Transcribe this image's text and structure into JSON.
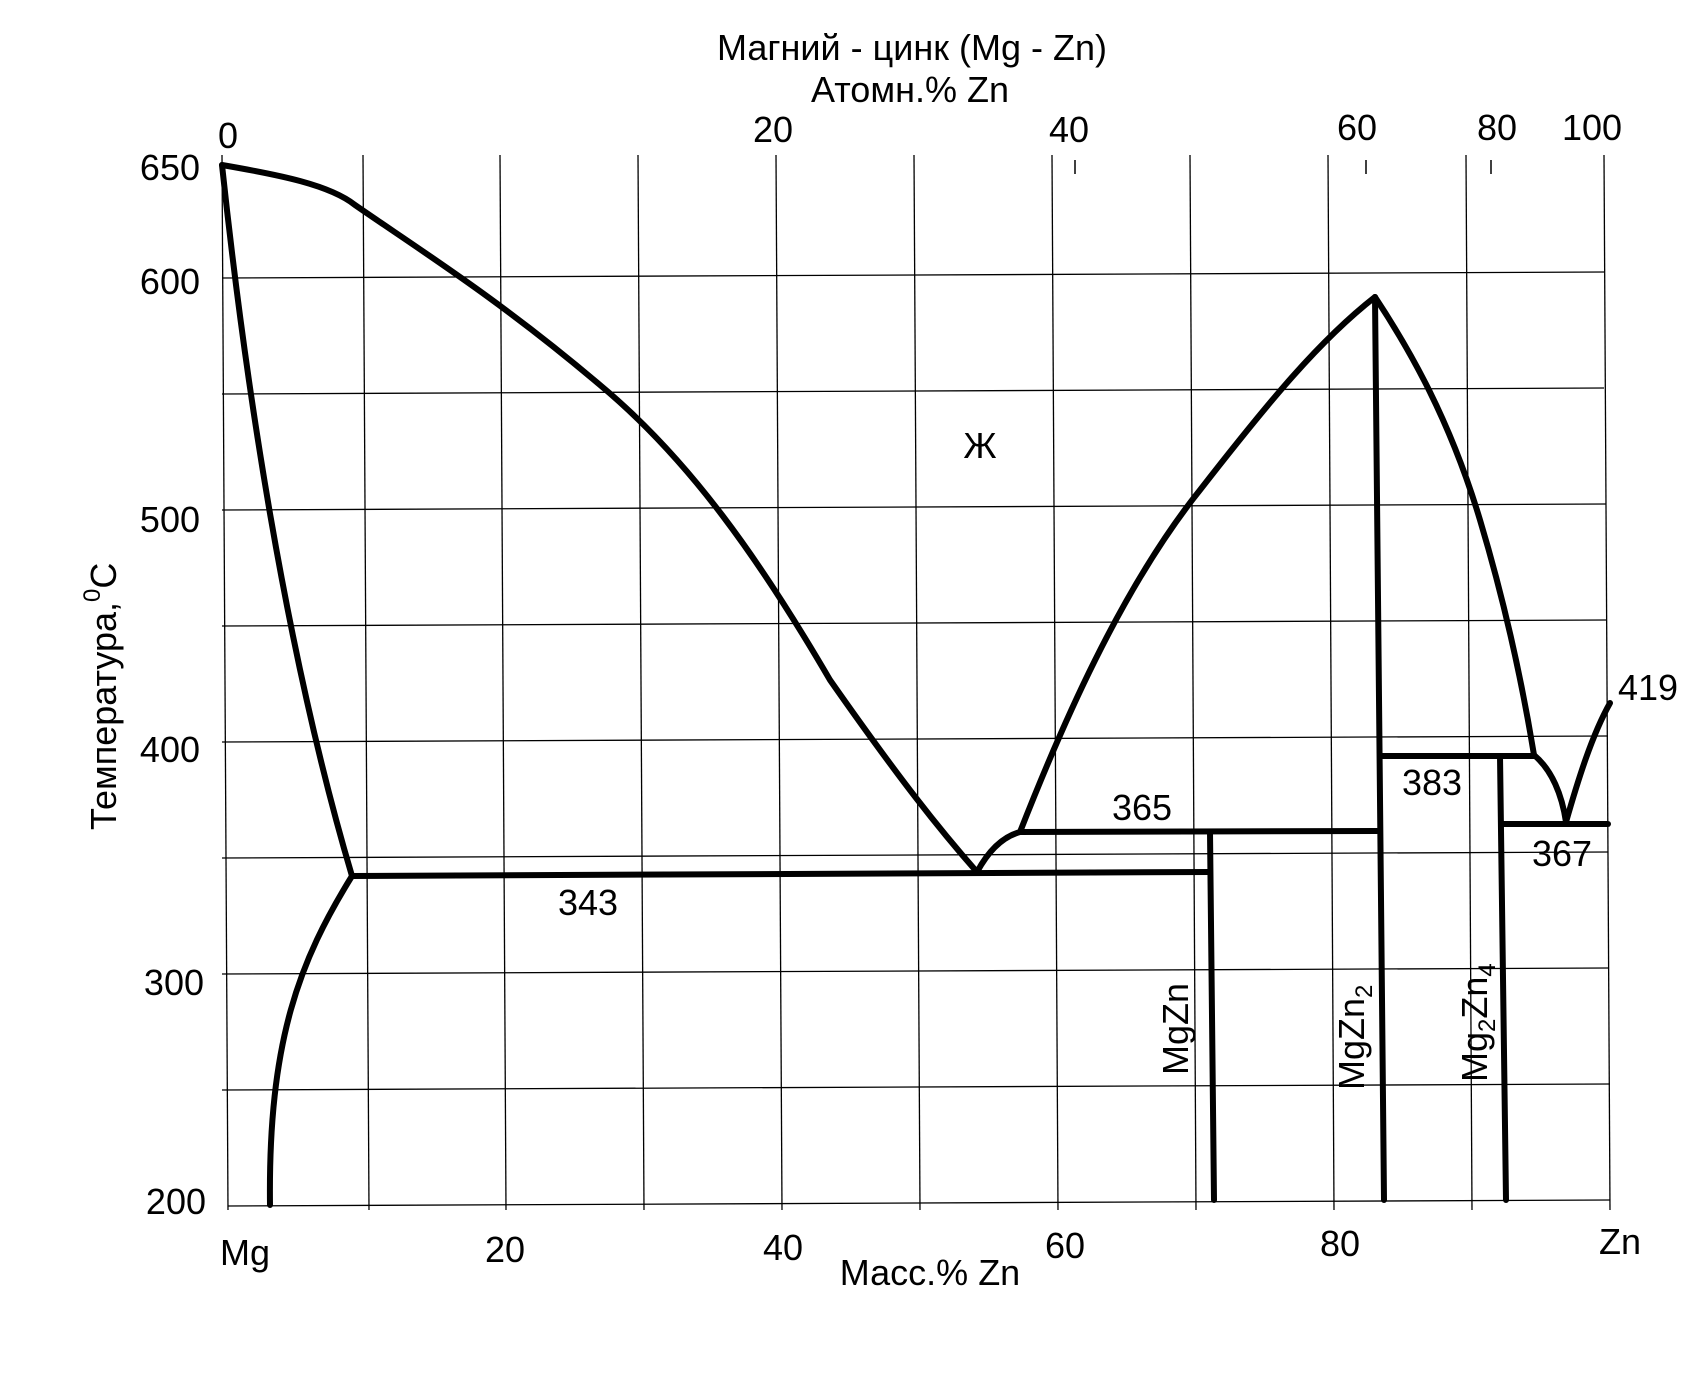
{
  "title": {
    "line1": "Магний - цинк (Mg - Zn)",
    "line2": "Атомн.% Zn"
  },
  "axes": {
    "x_bottom": {
      "label": "Масс.% Zn",
      "ticks": [
        "Mg",
        "20",
        "40",
        "60",
        "80",
        "Zn"
      ]
    },
    "x_top": {
      "ticks": [
        "0",
        "20",
        "40",
        "60",
        "80",
        "100"
      ]
    },
    "y": {
      "label": "Температура,",
      "unit_sup": "0",
      "unit": "C",
      "ticks": [
        "650",
        "600",
        "500",
        "400",
        "300",
        "200"
      ]
    }
  },
  "phase_field_label": "Ж",
  "temperatures": {
    "t343": "343",
    "t365": "365",
    "t383": "383",
    "t367": "367",
    "t419": "419"
  },
  "compounds": {
    "mgzn": {
      "base": "MgZn",
      "sub": ""
    },
    "mgzn2": {
      "base": "MgZn",
      "sub": "2"
    },
    "mg2zn4": {
      "mg": "Mg",
      "sub1": "2",
      "zn": "Zn",
      "sub2": "4"
    }
  }
}
